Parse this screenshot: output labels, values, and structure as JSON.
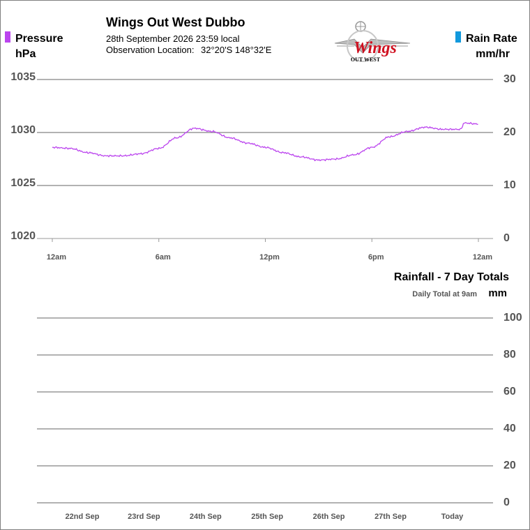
{
  "header": {
    "station_title": "Wings Out West Dubbo",
    "date_line": "28th September 2026  23:59 local",
    "location_label": "Observation Location:",
    "location_value": "32°20'S 148°32'E"
  },
  "logo": {
    "text": "Wings",
    "subtext": "OUT WEST",
    "color": "#d01020"
  },
  "legend": {
    "pressure": {
      "label": "Pressure",
      "unit": "hPa",
      "color": "#bb44ee"
    },
    "rain_rate": {
      "label": "Rain Rate",
      "unit": "mm/hr",
      "color": "#1199dd"
    }
  },
  "rainfall_section": {
    "title": "Rainfall - 7 Day Totals",
    "subtitle": "Daily Total at 9am",
    "unit": "mm"
  },
  "chart_data": [
    {
      "type": "line",
      "x_ticks": [
        "12am",
        "6am",
        "12pm",
        "6pm",
        "12am"
      ],
      "y_left_ticks": [
        "1035",
        "1030",
        "1025",
        "1020"
      ],
      "y_right_ticks": [
        "30",
        "20",
        "10",
        "0"
      ],
      "ylim_left": [
        1020,
        1035
      ],
      "ylim_right": [
        0,
        30
      ],
      "xlim_hours": [
        0,
        24
      ],
      "grid": true,
      "series": [
        {
          "name": "Pressure",
          "color": "#bb44ee",
          "x": [
            0,
            1,
            2,
            3,
            4,
            5,
            6,
            7,
            8,
            9,
            10,
            11,
            12,
            13,
            14,
            15,
            16,
            17,
            18,
            19,
            20,
            21,
            22,
            23,
            23.2,
            24
          ],
          "y": [
            1028.6,
            1028.5,
            1028.1,
            1027.8,
            1027.8,
            1028.0,
            1028.5,
            1029.5,
            1030.4,
            1030.1,
            1029.5,
            1029.0,
            1028.6,
            1028.1,
            1027.7,
            1027.4,
            1027.5,
            1027.9,
            1028.6,
            1029.6,
            1030.1,
            1030.5,
            1030.3,
            1030.3,
            1030.9,
            1030.8
          ]
        },
        {
          "name": "Rain Rate",
          "color": "#1199dd",
          "x": [],
          "y": []
        }
      ]
    },
    {
      "type": "bar",
      "title": "Rainfall - 7 Day Totals",
      "categories": [
        "22nd Sep",
        "23rd Sep",
        "24th Sep",
        "25th Sep",
        "26th Sep",
        "27th Sep",
        "Today"
      ],
      "values": [
        0,
        0,
        0,
        0,
        0,
        0,
        0
      ],
      "y_ticks": [
        "100",
        "80",
        "60",
        "40",
        "20",
        "0"
      ],
      "ylim": [
        0,
        100
      ],
      "grid": true
    }
  ]
}
